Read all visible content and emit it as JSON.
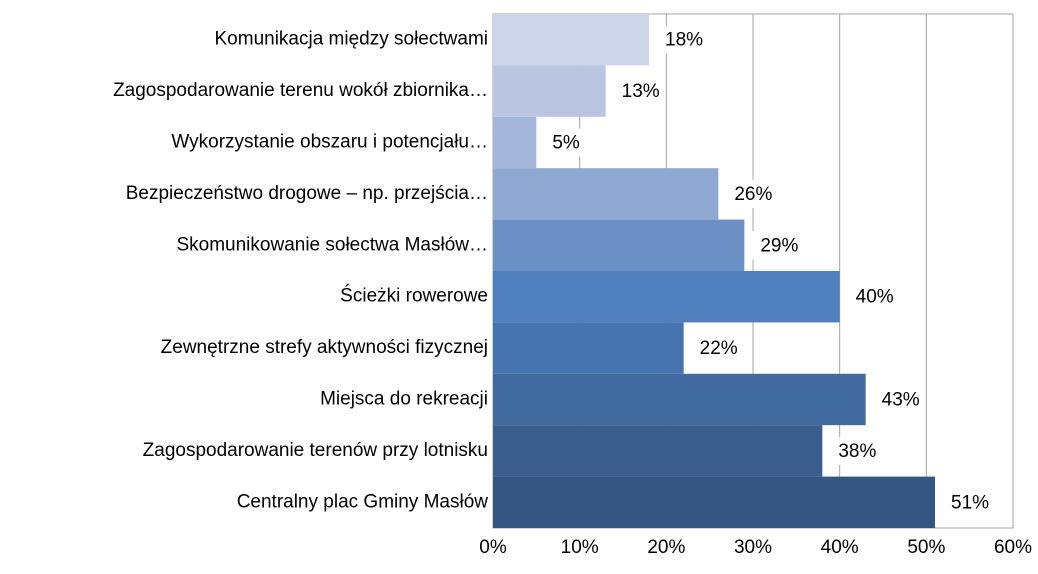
{
  "chart_data": {
    "type": "bar",
    "orientation": "horizontal",
    "categories": [
      "Komunikacja między sołectwami",
      "Zagospodarowanie terenu wokół zbiornika…",
      "Wykorzystanie obszaru i potencjału…",
      "Bezpieczeństwo drogowe – np. przejścia…",
      "Skomunikowanie sołectwa Masłów…",
      "Ścieżki rowerowe",
      "Zewnętrzne strefy aktywności fizycznej",
      "Miejsca do rekreacji",
      "Zagospodarowanie terenów przy lotnisku",
      "Centralny plac Gminy Masłów"
    ],
    "values": [
      18,
      13,
      5,
      26,
      29,
      40,
      22,
      43,
      38,
      51
    ],
    "value_labels": [
      "18%",
      "13%",
      "5%",
      "26%",
      "29%",
      "40%",
      "22%",
      "43%",
      "38%",
      "51%"
    ],
    "colors": [
      "#cdd5e8",
      "#bac6e1",
      "#a3b5d8",
      "#8fa8d1",
      "#6b90c6",
      "#4f80bd",
      "#4774ae",
      "#416aa0",
      "#3b5e8e",
      "#355682"
    ],
    "xlim": [
      0,
      60
    ],
    "xticks": [
      {
        "value": 0,
        "label": "0%"
      },
      {
        "value": 10,
        "label": "10%"
      },
      {
        "value": 20,
        "label": "20%"
      },
      {
        "value": 30,
        "label": "30%"
      },
      {
        "value": 40,
        "label": "40%"
      },
      {
        "value": 50,
        "label": "50%"
      },
      {
        "value": 60,
        "label": "60%"
      }
    ],
    "grid": true
  }
}
